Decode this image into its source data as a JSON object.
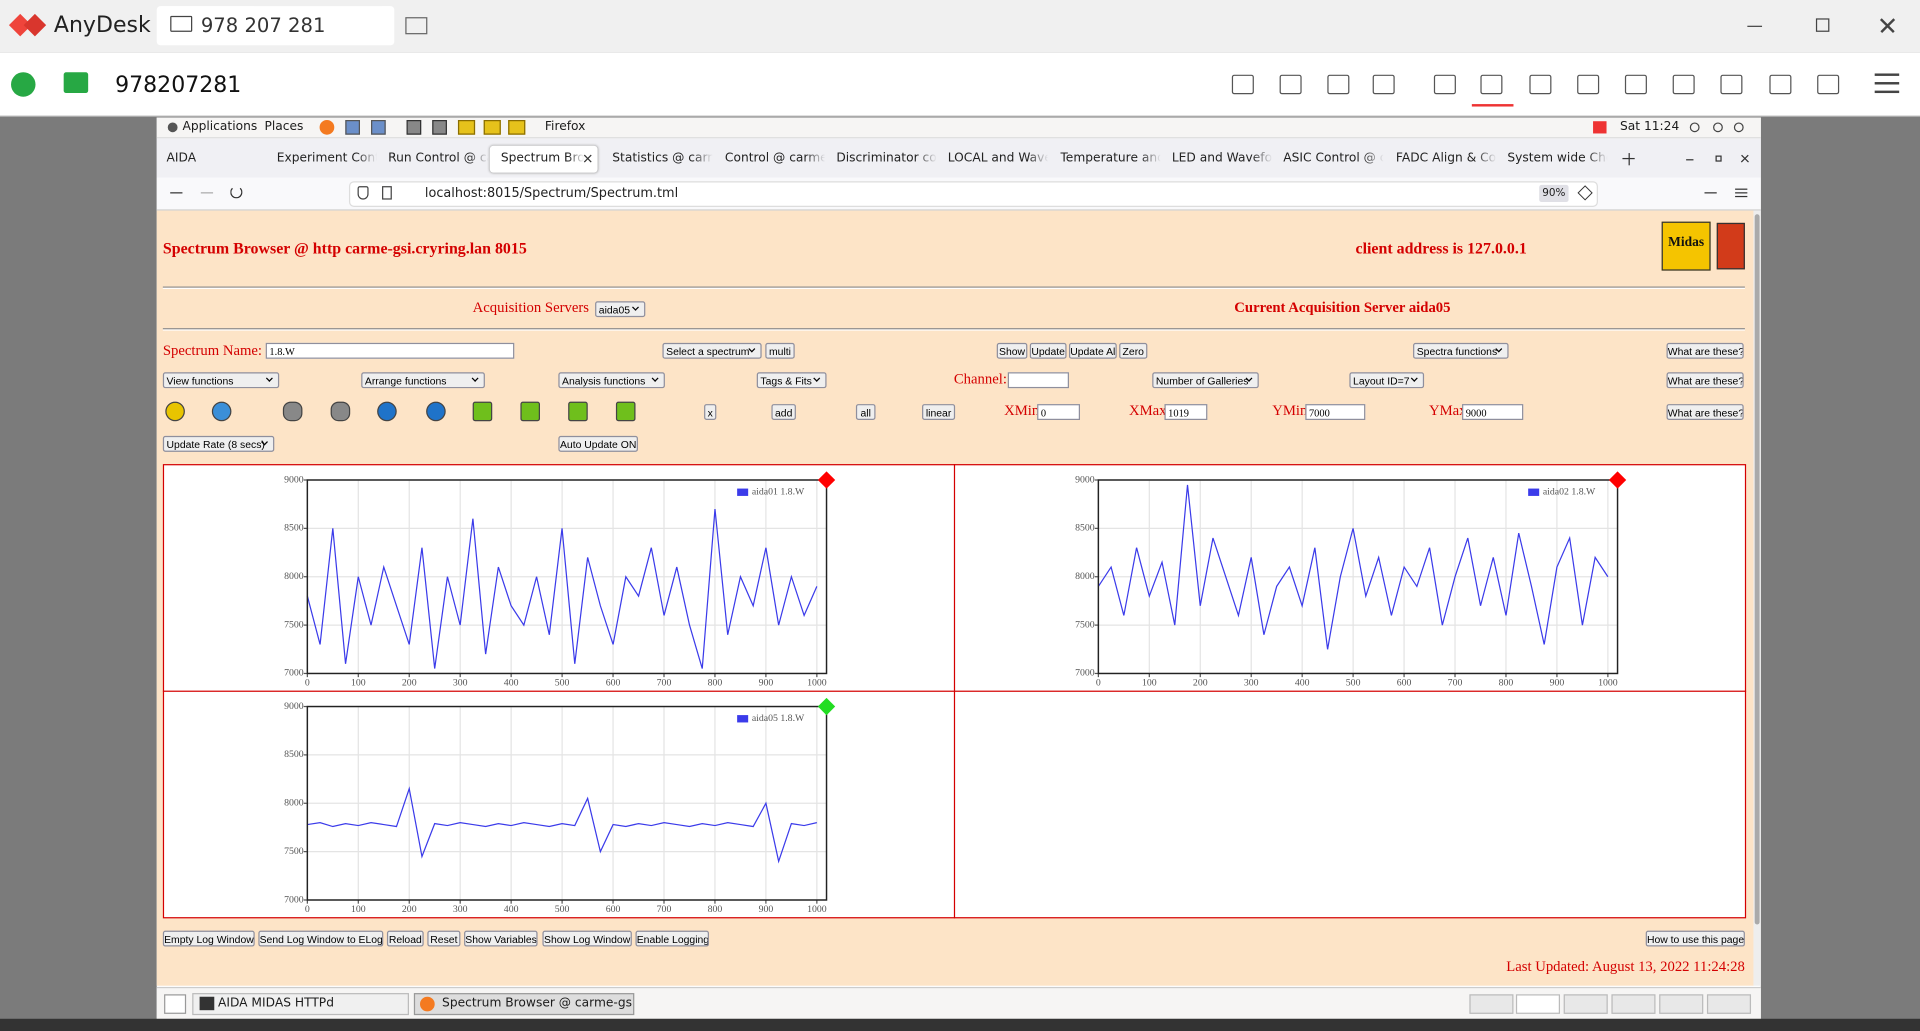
{
  "anydesk": {
    "app": "AnyDesk",
    "tab": "978 207 281",
    "address": "978207281"
  },
  "desktop": {
    "menus": [
      "Applications",
      "Places",
      "Firefox"
    ],
    "clock": "Sat 11:24"
  },
  "browser": {
    "tabs": [
      "AIDA",
      "Experiment Contr",
      "Run Control @ ca",
      "Spectrum Brow",
      "Statistics @ carm",
      "Control @ carme",
      "Discriminator cor",
      "LOCAL and Wave",
      "Temperature and",
      "LED and Wavefor",
      "ASIC Control @ c",
      "FADC Align & Co",
      "System wide Che"
    ],
    "url": "localhost:8015/Spectrum/Spectrum.tml",
    "zoom": "90%"
  },
  "page": {
    "title": "Spectrum Browser @ http carme-gsi.cryring.lan 8015",
    "client": "client address is 127.0.0.1",
    "logo": "Midas",
    "acq_label": "Acquisition Servers",
    "acq_select": "aida05",
    "current_server": "Current Acquisition Server aida05",
    "spectrum_name_label": "Spectrum Name:",
    "spectrum_name": "1.8.W",
    "select_spectrum": "Select a spectrum",
    "multi": "multi",
    "buttons1": [
      "Show",
      "Update",
      "Update All",
      "Zero"
    ],
    "spectra_functions": "Spectra functions",
    "help": [
      "What are these?",
      "What are these?",
      "What are these?"
    ],
    "selects2": [
      "View functions",
      "Arrange functions",
      "Analysis functions",
      "Tags & Fits"
    ],
    "channel_label": "Channel:",
    "galleries": "Number of Galleries",
    "layout": "Layout ID=7",
    "buttons3": [
      "x",
      "add",
      "all",
      "linear"
    ],
    "xmin_label": "XMin",
    "xmin": 0,
    "xmax_label": "XMax",
    "xmax": 1019,
    "ymin_label": "YMin",
    "ymin": 7000,
    "ymax_label": "YMax",
    "ymax": 9000,
    "update_rate": "Update Rate (8 secs)",
    "auto_update": "Auto Update ON",
    "log_buttons": [
      "Empty Log Window",
      "Send Log Window to ELog",
      "Reload",
      "Reset",
      "Show Variables",
      "Show Log Window",
      "Enable Logging"
    ],
    "howto": "How to use this page",
    "last_updated": "Last Updated: August 13, 2022 11:24:28"
  },
  "taskbar": [
    "AIDA MIDAS HTTPd",
    "Spectrum Browser @ carme-gsi — ..."
  ],
  "plots": [
    {
      "type": "line",
      "xlim": [
        0,
        1019
      ],
      "ylim": [
        7000,
        9000
      ],
      "xticks": [
        0,
        100,
        200,
        300,
        400,
        500,
        600,
        700,
        800,
        900,
        1000
      ],
      "yticks": [
        7000,
        7500,
        8000,
        8500,
        9000
      ],
      "grid": true,
      "status_color": "#ff0000",
      "x": [
        0,
        25,
        50,
        75,
        100,
        125,
        150,
        175,
        200,
        225,
        250,
        275,
        300,
        325,
        350,
        375,
        400,
        425,
        450,
        475,
        500,
        525,
        550,
        575,
        600,
        625,
        650,
        675,
        700,
        725,
        750,
        775,
        800,
        825,
        850,
        875,
        900,
        925,
        950,
        975,
        1000
      ],
      "series": [
        {
          "name": "aida01 1.8.W",
          "color": "#3b3bea",
          "values": [
            7800,
            7300,
            8500,
            7100,
            8000,
            7500,
            8100,
            7700,
            7300,
            8300,
            7050,
            8000,
            7500,
            8600,
            7200,
            8100,
            7700,
            7500,
            8000,
            7400,
            8500,
            7100,
            8200,
            7700,
            7300,
            8000,
            7800,
            8300,
            7600,
            8100,
            7500,
            7050,
            8700,
            7400,
            8000,
            7700,
            8300,
            7500,
            8000,
            7600,
            7900
          ]
        }
      ]
    },
    {
      "type": "line",
      "xlim": [
        0,
        1019
      ],
      "ylim": [
        7000,
        9000
      ],
      "xticks": [
        0,
        100,
        200,
        300,
        400,
        500,
        600,
        700,
        800,
        900,
        1000
      ],
      "yticks": [
        7000,
        7500,
        8000,
        8500,
        9000
      ],
      "grid": true,
      "status_color": "#ff0000",
      "x": [
        0,
        25,
        50,
        75,
        100,
        125,
        150,
        175,
        200,
        225,
        250,
        275,
        300,
        325,
        350,
        375,
        400,
        425,
        450,
        475,
        500,
        525,
        550,
        575,
        600,
        625,
        650,
        675,
        700,
        725,
        750,
        775,
        800,
        825,
        850,
        875,
        900,
        925,
        950,
        975,
        1000
      ],
      "series": [
        {
          "name": "aida02 1.8.W",
          "color": "#3b3bea",
          "values": [
            7900,
            8100,
            7600,
            8300,
            7800,
            8150,
            7500,
            8950,
            7700,
            8400,
            8000,
            7600,
            8200,
            7400,
            7900,
            8100,
            7700,
            8300,
            7250,
            8000,
            8500,
            7800,
            8200,
            7600,
            8100,
            7900,
            8300,
            7500,
            8000,
            8400,
            7700,
            8200,
            7600,
            8450,
            7900,
            7300,
            8100,
            8400,
            7500,
            8200,
            8000
          ]
        }
      ]
    },
    {
      "type": "line",
      "xlim": [
        0,
        1019
      ],
      "ylim": [
        7000,
        9000
      ],
      "xticks": [
        0,
        100,
        200,
        300,
        400,
        500,
        600,
        700,
        800,
        900,
        1000
      ],
      "yticks": [
        7000,
        7500,
        8000,
        8500,
        9000
      ],
      "grid": true,
      "status_color": "#22dd22",
      "x": [
        0,
        25,
        50,
        75,
        100,
        125,
        150,
        175,
        200,
        225,
        250,
        275,
        300,
        325,
        350,
        375,
        400,
        425,
        450,
        475,
        500,
        525,
        550,
        575,
        600,
        625,
        650,
        675,
        700,
        725,
        750,
        775,
        800,
        825,
        850,
        875,
        900,
        925,
        950,
        975,
        1000
      ],
      "series": [
        {
          "name": "aida05 1.8.W",
          "color": "#3b3bea",
          "values": [
            7780,
            7800,
            7760,
            7790,
            7770,
            7800,
            7780,
            7760,
            8150,
            7450,
            7790,
            7770,
            7800,
            7780,
            7760,
            7790,
            7770,
            7800,
            7780,
            7760,
            7790,
            7770,
            8050,
            7500,
            7780,
            7760,
            7790,
            7770,
            7800,
            7780,
            7760,
            7790,
            7770,
            7800,
            7780,
            7760,
            8000,
            7400,
            7790,
            7770,
            7800
          ]
        }
      ]
    }
  ]
}
